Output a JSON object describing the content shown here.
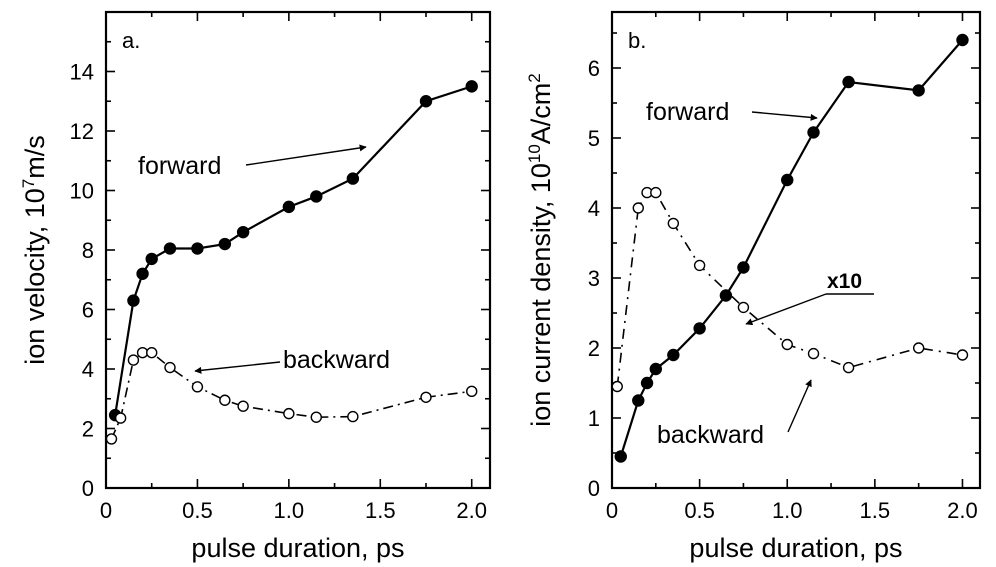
{
  "chart_data": [
    {
      "type": "line",
      "panel_label": "a.",
      "xlabel": "pulse duration, ps",
      "ylabel": {
        "base": "ion velocity, 10",
        "sup": "7",
        "rest": "m/s"
      },
      "xlim": [
        0,
        2.1
      ],
      "ylim": [
        0,
        16
      ],
      "xticks": [
        "0",
        "0.5",
        "1.0",
        "1.5",
        "2.0"
      ],
      "yticks": [
        "0",
        "2",
        "4",
        "6",
        "8",
        "10",
        "12",
        "14"
      ],
      "grid": false,
      "series": [
        {
          "name": "forward",
          "marker": "filled-circle",
          "line": "solid",
          "x": [
            0.05,
            0.15,
            0.2,
            0.25,
            0.35,
            0.5,
            0.65,
            0.75,
            1.0,
            1.15,
            1.35,
            1.75,
            2.0
          ],
          "y": [
            2.45,
            6.3,
            7.2,
            7.7,
            8.05,
            8.05,
            8.2,
            8.6,
            9.45,
            9.8,
            10.4,
            13.0,
            13.5
          ]
        },
        {
          "name": "backward",
          "marker": "open-circle",
          "line": "dash-dot",
          "x": [
            0.03,
            0.08,
            0.15,
            0.2,
            0.25,
            0.35,
            0.5,
            0.65,
            0.75,
            1.0,
            1.15,
            1.35,
            1.75,
            2.0
          ],
          "y": [
            1.65,
            2.35,
            4.3,
            4.55,
            4.55,
            4.05,
            3.4,
            2.95,
            2.75,
            2.5,
            2.38,
            2.4,
            3.05,
            3.25
          ]
        }
      ],
      "annotations": [
        "forward",
        "backward"
      ]
    },
    {
      "type": "line",
      "panel_label": "b.",
      "xlabel": "pulse duration, ps",
      "ylabel": {
        "base": "ion current density, 10",
        "sup": "10",
        "rest": "A/cm",
        "sup2": "2"
      },
      "xlim": [
        0,
        2.1
      ],
      "ylim": [
        0,
        6.8
      ],
      "xticks": [
        "0",
        "0.5",
        "1.0",
        "1.5",
        "2.0"
      ],
      "yticks": [
        "0",
        "1",
        "2",
        "3",
        "4",
        "5",
        "6"
      ],
      "grid": false,
      "series": [
        {
          "name": "forward",
          "marker": "filled-circle",
          "line": "solid",
          "x": [
            0.05,
            0.15,
            0.2,
            0.25,
            0.35,
            0.5,
            0.65,
            0.75,
            1.0,
            1.15,
            1.35,
            1.75,
            2.0
          ],
          "y": [
            0.45,
            1.25,
            1.5,
            1.7,
            1.9,
            2.28,
            2.75,
            3.15,
            4.4,
            5.08,
            5.8,
            5.68,
            6.4
          ]
        },
        {
          "name": "backward",
          "marker": "open-circle",
          "line": "dash-dot",
          "x": [
            0.03,
            0.15,
            0.2,
            0.25,
            0.35,
            0.5,
            0.75,
            1.0,
            1.15,
            1.35,
            1.75,
            2.0
          ],
          "y": [
            1.45,
            4.0,
            4.22,
            4.22,
            3.78,
            3.18,
            2.58,
            2.05,
            1.92,
            1.72,
            2.0,
            1.9
          ]
        }
      ],
      "annotations": [
        "forward",
        "x10",
        "backward"
      ]
    }
  ]
}
